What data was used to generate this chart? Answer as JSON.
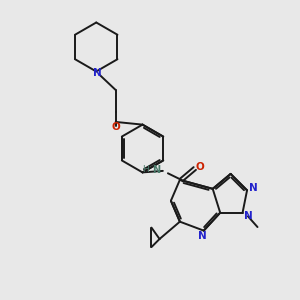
{
  "bg_color": "#e8e8e8",
  "bond_color": "#1a1a1a",
  "n_color": "#2222cc",
  "o_color": "#cc2200",
  "nh_color": "#4a7a6a",
  "lw": 1.4,
  "dbo": 0.055,
  "xlim": [
    0,
    10
  ],
  "ylim": [
    0,
    10
  ]
}
